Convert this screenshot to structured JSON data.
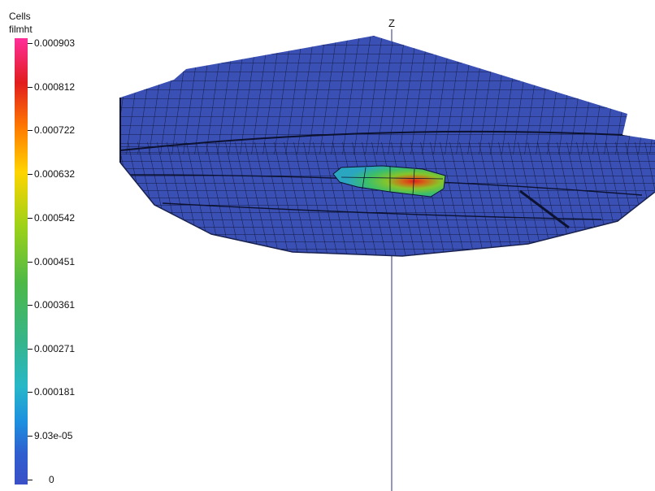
{
  "legend": {
    "title_line1": "Cells",
    "title_line2": "filmht",
    "ticks": [
      "0.000903",
      "0.000812",
      "0.000722",
      "0.000632",
      "0.000542",
      "0.000451",
      "0.000361",
      "0.000271",
      "0.000181",
      "9.03e-05",
      "0"
    ]
  },
  "axis": {
    "z_label": "Z"
  },
  "colors": {
    "mesh_face": "#3a50b4",
    "mesh_lines": "#0c1230",
    "axis_line": "#50508c"
  }
}
